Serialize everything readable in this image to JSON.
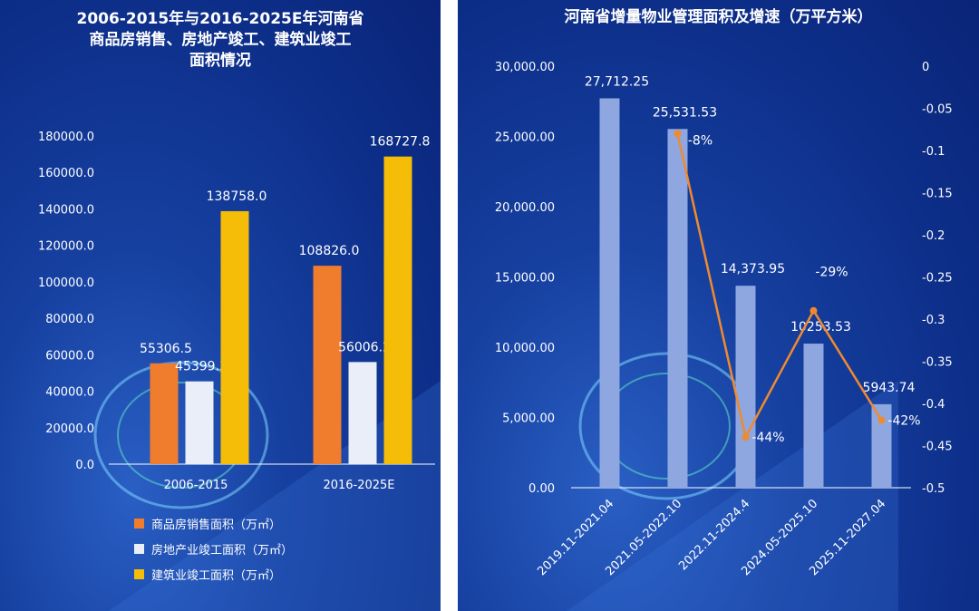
{
  "left": {
    "title_line1": "2006-2015年与2016-2025E年河南省",
    "title_line2": "商品房销售、房地产竣工、建筑业竣工",
    "title_line3": "面积情况",
    "chart_data": {
      "type": "bar",
      "categories": [
        "2006-2015",
        "2016-2025E"
      ],
      "series": [
        {
          "name": "商品房销售面积（万㎡）",
          "values": [
            55306.5,
            108826.0
          ],
          "labels": [
            "55306.5",
            "108826.0"
          ],
          "color": "#f07d2e"
        },
        {
          "name": "房地产业竣工面积（万㎡）",
          "values": [
            45399.3,
            56006.2
          ],
          "labels": [
            "45399.3",
            "56006.2"
          ],
          "color": "#e9eef8"
        },
        {
          "name": "建筑业竣工面积（万㎡）",
          "values": [
            138758.0,
            168727.8
          ],
          "labels": [
            "138758.0",
            "168727.8"
          ],
          "color": "#f5bd08"
        }
      ],
      "ylim": [
        0,
        180000
      ],
      "yticks": [
        "0.0",
        "20000.0",
        "40000.0",
        "60000.0",
        "80000.0",
        "100000.0",
        "120000.0",
        "140000.0",
        "160000.0",
        "180000.0"
      ],
      "legend_position": "bottom"
    }
  },
  "right": {
    "title": "河南省增量物业管理面积及增速（万平方米）",
    "chart_data": {
      "type": "bar+line",
      "categories": [
        "2019.11-2021.04",
        "2021.05-2022.10",
        "2022.11-2024.4",
        "2024.05-2025.10",
        "2025.11-2027.04"
      ],
      "bars": {
        "values": [
          27712.25,
          25531.53,
          14373.95,
          10253.53,
          5943.74
        ],
        "labels": [
          "27,712.25",
          "25,531.53",
          "14,373.95",
          "10253.53",
          "5943.74"
        ],
        "color": "#8ea7e0"
      },
      "line": {
        "x_index": [
          1,
          2,
          3,
          4
        ],
        "values": [
          -0.08,
          -0.44,
          -0.29,
          -0.42
        ],
        "labels": [
          "-8%",
          "-44%",
          "-29%",
          "-42%"
        ],
        "color": "#f08a2e"
      },
      "ylim_left": [
        0,
        30000
      ],
      "yticks_left": [
        "0.00",
        "5,000.00",
        "10,000.00",
        "15,000.00",
        "20,000.00",
        "25,000.00",
        "30,000.00"
      ],
      "ylim_right": [
        -0.5,
        0
      ],
      "yticks_right": [
        "-0.5",
        "-0.45",
        "-0.4",
        "-0.35",
        "-0.3",
        "-0.25",
        "-0.2",
        "-0.15",
        "-0.1",
        "-0.05",
        "0"
      ]
    }
  }
}
